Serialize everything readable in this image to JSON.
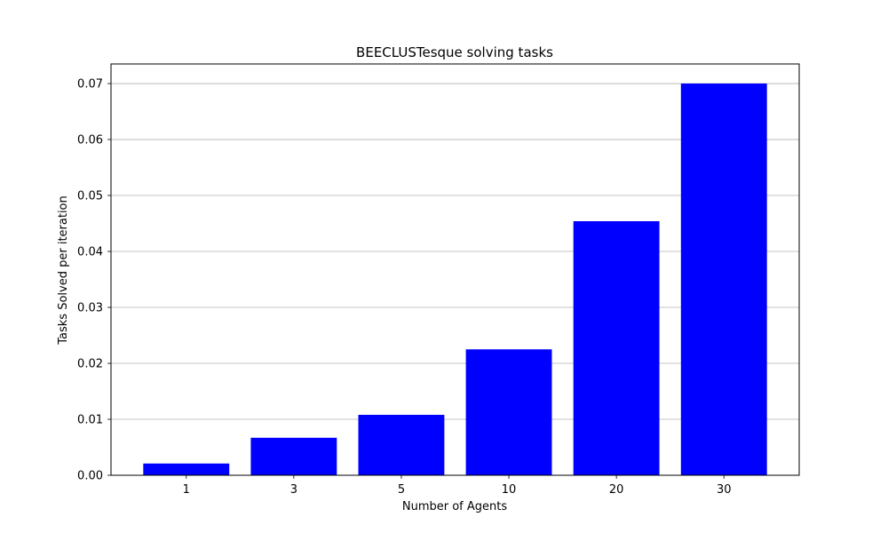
{
  "chart_data": {
    "type": "bar",
    "title": "BEECLUSTesque solving tasks",
    "xlabel": "Number of Agents",
    "ylabel": "Tasks Solved per iteration",
    "categories": [
      "1",
      "3",
      "5",
      "10",
      "20",
      "30"
    ],
    "values": [
      0.0021,
      0.0067,
      0.0108,
      0.0225,
      0.0454,
      0.07
    ],
    "ylim": [
      0,
      0.0735
    ],
    "yticks": [
      0.0,
      0.01,
      0.02,
      0.03,
      0.04,
      0.05,
      0.06,
      0.07
    ],
    "ytick_labels": [
      "0.00",
      "0.01",
      "0.02",
      "0.03",
      "0.04",
      "0.05",
      "0.06",
      "0.07"
    ],
    "grid": "y-major",
    "bar_color": "#0000ff",
    "grid_color": "#b0b0b0"
  }
}
